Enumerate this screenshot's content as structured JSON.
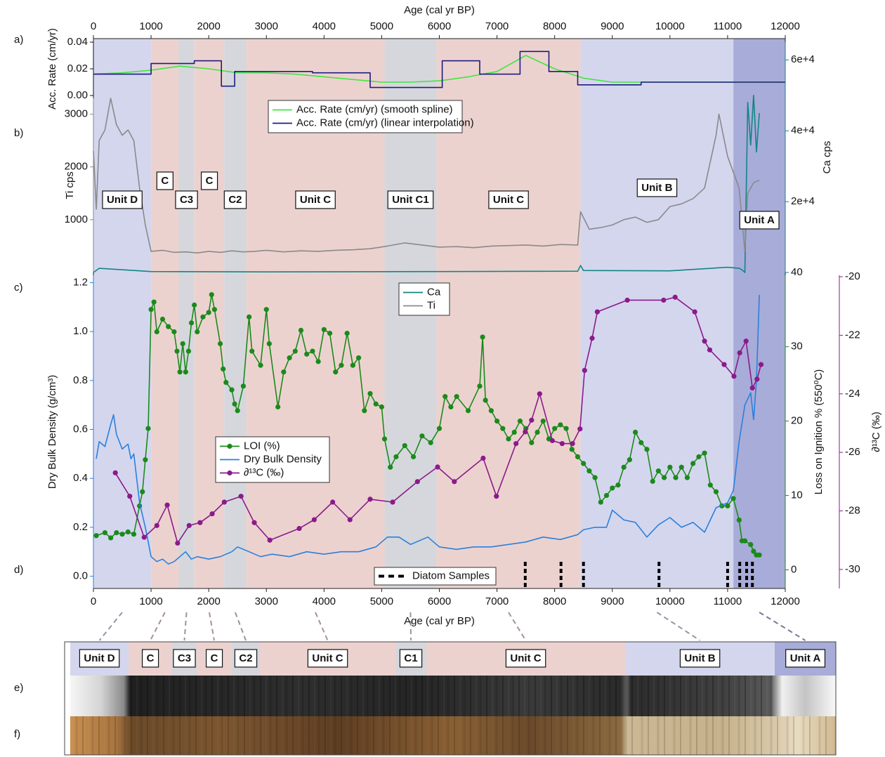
{
  "chart_data": [
    {
      "type": "line",
      "xlabel": "Age (cal yr BP)",
      "xlim": [
        0,
        12000
      ],
      "xticks": [
        0,
        1000,
        2000,
        3000,
        4000,
        5000,
        6000,
        7000,
        8000,
        9000,
        10000,
        11000,
        12000
      ],
      "ylabel": "Acc. Rate (cm/yr)",
      "ylim": [
        0,
        0.04
      ],
      "yticks": [
        {
          "value": 0,
          "label": "0.00"
        },
        {
          "value": 0.02,
          "label": "0.02"
        },
        {
          "value": 0.04,
          "label": "0.04"
        }
      ],
      "series": [
        {
          "name": "Acc. Rate (cm/yr) (smooth spline)",
          "color": "#3fe63f",
          "x": [
            0,
            500,
            1000,
            1500,
            2000,
            2500,
            3000,
            3500,
            4000,
            4500,
            5000,
            5500,
            6000,
            6500,
            7000,
            7500,
            8000,
            8500,
            9000,
            9500,
            10000,
            10500,
            11000,
            11500,
            12000
          ],
          "values": [
            0.016,
            0.017,
            0.019,
            0.022,
            0.02,
            0.017,
            0.017,
            0.016,
            0.014,
            0.012,
            0.01,
            0.01,
            0.011,
            0.014,
            0.018,
            0.03,
            0.02,
            0.013,
            0.01,
            0.01,
            0.01,
            0.01,
            0.01,
            0.01,
            0.01
          ]
        },
        {
          "name": "Acc. Rate (cm/yr) (linear interpolation)",
          "color": "#1c1c80",
          "x": [
            0,
            1000,
            1000,
            1750,
            1750,
            2220,
            2220,
            2450,
            2450,
            3800,
            3800,
            4800,
            4800,
            6050,
            6050,
            6700,
            6700,
            7400,
            7400,
            7900,
            7900,
            8400,
            8400,
            9500,
            9500,
            12000
          ],
          "values": [
            0.016,
            0.016,
            0.024,
            0.024,
            0.026,
            0.026,
            0.007,
            0.007,
            0.018,
            0.018,
            0.017,
            0.017,
            0.006,
            0.006,
            0.026,
            0.026,
            0.016,
            0.016,
            0.033,
            0.033,
            0.018,
            0.018,
            0.008,
            0.008,
            0.01,
            0.01
          ]
        }
      ]
    },
    {
      "type": "line",
      "xlim": [
        0,
        12000
      ],
      "ylabel": "Ti cps",
      "ylim": [
        0,
        3300
      ],
      "yticks": [
        1000,
        2000,
        3000
      ],
      "y2label": "Ca cps",
      "y2lim": [
        40,
        65000
      ],
      "y2ticks": [
        40,
        {
          "value": 20000,
          "label": "2e+4"
        },
        {
          "value": 40000,
          "label": "4e+4"
        },
        {
          "value": 60000,
          "label": "6e+4"
        }
      ],
      "series": [
        {
          "name": "Ca",
          "color": "#138585",
          "axis": "y2",
          "x": [
            0,
            100,
            1000,
            3000,
            6000,
            8400,
            8450,
            8500,
            10000,
            11000,
            11200,
            11250,
            11300,
            11350,
            11400,
            11450,
            11500,
            11550
          ],
          "values": [
            40,
            1200,
            300,
            200,
            300,
            400,
            2000,
            600,
            500,
            1500,
            1200,
            800,
            40,
            48000,
            36000,
            50000,
            34000,
            45000
          ]
        },
        {
          "name": "Ti",
          "color": "#8a8a8a",
          "axis": "y",
          "x": [
            0,
            50,
            100,
            200,
            300,
            400,
            500,
            600,
            700,
            800,
            900,
            1000,
            1200,
            1400,
            1600,
            1800,
            2000,
            2200,
            2400,
            2600,
            2800,
            3000,
            3300,
            3600,
            3900,
            4200,
            4500,
            4800,
            5100,
            5400,
            5700,
            6000,
            6300,
            6600,
            6900,
            7200,
            7500,
            7800,
            8100,
            8400,
            8450,
            8600,
            8800,
            9000,
            9200,
            9400,
            9600,
            9800,
            10000,
            10200,
            10400,
            10600,
            10800,
            10850,
            11000,
            11200,
            11300,
            11350,
            11450,
            11550
          ],
          "values": [
            2300,
            1200,
            2500,
            2700,
            3300,
            2800,
            2600,
            2700,
            2500,
            1600,
            900,
            400,
            420,
            380,
            390,
            370,
            400,
            380,
            410,
            390,
            400,
            420,
            390,
            410,
            400,
            420,
            430,
            450,
            500,
            560,
            520,
            480,
            490,
            470,
            500,
            510,
            520,
            500,
            530,
            520,
            1150,
            820,
            850,
            900,
            1000,
            1050,
            950,
            1000,
            1250,
            1300,
            1400,
            1600,
            2600,
            3000,
            2200,
            1600,
            400,
            1500,
            1700,
            1750
          ]
        }
      ]
    },
    {
      "type": "line",
      "xlabel": "Age (cal yr BP)",
      "xlim": [
        0,
        12000
      ],
      "xticks": [
        0,
        1000,
        2000,
        3000,
        4000,
        5000,
        6000,
        7000,
        8000,
        9000,
        10000,
        11000,
        12000
      ],
      "ylabel": "Dry Bulk Density (g/cm³)",
      "ylim": [
        -0.05,
        1.23
      ],
      "yticks": [
        {
          "value": 0,
          "label": "0.0"
        },
        0.2,
        0.4,
        0.6,
        0.8,
        {
          "value": 1,
          "label": "1.0"
        },
        1.2
      ],
      "y2label": "Loss on Ignition % (550⁰C)",
      "y2lim": [
        -2.5,
        39.6
      ],
      "y2ticks": [
        0,
        10,
        20,
        30
      ],
      "y3label": "∂¹³C (‰)",
      "y3lim": [
        -30.65,
        -19.95
      ],
      "y3ticks": [
        -30,
        -28,
        -26,
        -24,
        -22,
        -20
      ],
      "series": [
        {
          "name": "LOI (%)",
          "color": "#1b8a1b",
          "axis": "y2",
          "marker": true,
          "x": [
            50,
            200,
            300,
            400,
            500,
            600,
            700,
            800,
            850,
            900,
            950,
            1000,
            1050,
            1100,
            1200,
            1300,
            1400,
            1450,
            1500,
            1550,
            1600,
            1650,
            1700,
            1750,
            1800,
            1900,
            2000,
            2050,
            2100,
            2200,
            2250,
            2300,
            2400,
            2450,
            2500,
            2600,
            2700,
            2750,
            2900,
            3000,
            3050,
            3200,
            3300,
            3400,
            3500,
            3600,
            3700,
            3800,
            3900,
            4000,
            4100,
            4200,
            4300,
            4400,
            4500,
            4600,
            4700,
            4800,
            4900,
            5000,
            5050,
            5150,
            5250,
            5400,
            5550,
            5700,
            5850,
            6000,
            6100,
            6200,
            6300,
            6500,
            6700,
            6750,
            6800,
            6900,
            7000,
            7100,
            7200,
            7300,
            7400,
            7500,
            7600,
            7700,
            7800,
            7900,
            8000,
            8100,
            8200,
            8300,
            8400,
            8500,
            8600,
            8700,
            8800,
            8900,
            9000,
            9100,
            9200,
            9300,
            9400,
            9500,
            9600,
            9700,
            9800,
            9900,
            10000,
            10100,
            10200,
            10300,
            10400,
            10500,
            10600,
            10700,
            10800,
            10900,
            11000,
            11100,
            11200,
            11250,
            11300,
            11400,
            11450,
            11500,
            11550
          ],
          "values": [
            4.6,
            5.0,
            4.3,
            5.0,
            4.8,
            5.1,
            4.8,
            8.6,
            10.5,
            14.8,
            19.0,
            35.0,
            36.0,
            32.0,
            33.7,
            32.7,
            32.0,
            29.4,
            26.6,
            30.4,
            26.6,
            29.4,
            33.2,
            35.6,
            32.0,
            34.0,
            34.6,
            37.0,
            35.0,
            30.4,
            27.0,
            25.2,
            24.2,
            22.3,
            21.4,
            24.7,
            34.0,
            29.4,
            27.5,
            35.0,
            30.4,
            21.9,
            26.6,
            28.5,
            29.4,
            32.2,
            29.0,
            29.4,
            28.0,
            32.3,
            31.8,
            26.6,
            27.5,
            31.8,
            27.5,
            28.5,
            21.4,
            23.7,
            22.3,
            21.9,
            17.6,
            13.8,
            15.2,
            16.7,
            15.2,
            18.0,
            17.1,
            19.0,
            23.3,
            21.9,
            23.3,
            21.4,
            24.7,
            31.3,
            22.8,
            21.4,
            20.0,
            19.0,
            17.6,
            18.5,
            20.0,
            19.0,
            17.1,
            18.5,
            20.0,
            17.6,
            19.0,
            19.5,
            19.0,
            16.2,
            15.2,
            14.3,
            13.3,
            12.4,
            9.1,
            10.0,
            11.0,
            11.4,
            13.8,
            14.8,
            18.5,
            17.1,
            16.2,
            11.9,
            13.3,
            12.4,
            13.8,
            12.4,
            13.8,
            12.4,
            14.3,
            15.2,
            15.7,
            11.4,
            10.5,
            8.6,
            8.6,
            9.6,
            6.7,
            3.9,
            3.9,
            3.4,
            2.5,
            2.0,
            2.0
          ]
        },
        {
          "name": "Dry Bulk Density",
          "color": "#2a80dc",
          "axis": "y",
          "x": [
            50,
            100,
            200,
            300,
            350,
            400,
            500,
            600,
            650,
            700,
            750,
            800,
            900,
            1000,
            1100,
            1200,
            1300,
            1400,
            1500,
            1600,
            1700,
            1800,
            2000,
            2200,
            2400,
            2500,
            2700,
            2900,
            3100,
            3400,
            3700,
            4000,
            4300,
            4600,
            4900,
            5100,
            5300,
            5500,
            5800,
            6000,
            6300,
            6600,
            6900,
            7200,
            7500,
            7800,
            8100,
            8400,
            8500,
            8700,
            8900,
            9000,
            9200,
            9400,
            9600,
            9800,
            10000,
            10200,
            10400,
            10600,
            10800,
            11000,
            11100,
            11200,
            11300,
            11400,
            11450,
            11500,
            11550
          ],
          "values": [
            0.48,
            0.55,
            0.53,
            0.62,
            0.66,
            0.58,
            0.52,
            0.54,
            0.48,
            0.5,
            0.4,
            0.3,
            0.2,
            0.08,
            0.06,
            0.07,
            0.05,
            0.06,
            0.08,
            0.1,
            0.07,
            0.08,
            0.07,
            0.08,
            0.1,
            0.12,
            0.1,
            0.08,
            0.09,
            0.08,
            0.1,
            0.09,
            0.1,
            0.1,
            0.12,
            0.16,
            0.16,
            0.13,
            0.16,
            0.12,
            0.11,
            0.12,
            0.12,
            0.13,
            0.14,
            0.16,
            0.15,
            0.17,
            0.19,
            0.2,
            0.2,
            0.27,
            0.23,
            0.22,
            0.16,
            0.21,
            0.24,
            0.2,
            0.22,
            0.18,
            0.28,
            0.3,
            0.35,
            0.55,
            0.7,
            0.75,
            0.64,
            0.8,
            1.15
          ]
        },
        {
          "name": "∂¹³C (‰)",
          "color": "#8b1a8b",
          "axis": "y3",
          "marker": true,
          "x": [
            380,
            630,
            880,
            1100,
            1280,
            1460,
            1660,
            1850,
            2060,
            2270,
            2560,
            2790,
            3060,
            3570,
            3830,
            4150,
            4450,
            4800,
            5190,
            5620,
            5970,
            6260,
            6760,
            6990,
            7330,
            7490,
            7600,
            7740,
            7960,
            8130,
            8310,
            8440,
            8520,
            8650,
            8740,
            9260,
            9890,
            10090,
            10430,
            10600,
            10690,
            10940,
            11110,
            11210,
            11320,
            11430,
            11510,
            11580
          ],
          "values": [
            -26.7,
            -27.5,
            -28.9,
            -28.5,
            -27.8,
            -29.1,
            -28.5,
            -28.4,
            -28.1,
            -27.7,
            -27.5,
            -28.4,
            -29.0,
            -28.6,
            -28.3,
            -27.7,
            -28.3,
            -27.6,
            -27.7,
            -27.0,
            -26.5,
            -27.0,
            -26.2,
            -27.5,
            -25.7,
            -25.3,
            -24.9,
            -24.0,
            -25.6,
            -25.7,
            -25.7,
            -25.2,
            -23.2,
            -22.1,
            -21.2,
            -20.8,
            -20.8,
            -20.7,
            -21.2,
            -22.2,
            -22.5,
            -23.0,
            -23.4,
            -22.6,
            -22.2,
            -23.8,
            -23.5,
            -23.0
          ]
        }
      ],
      "markers": {
        "name": "Diatom Samples",
        "color": "#000000",
        "x": [
          7490,
          8110,
          8500,
          9810,
          11000,
          11210,
          11330,
          11430
        ]
      }
    }
  ],
  "units": [
    {
      "label": "Unit D",
      "start": 0,
      "end": 1000,
      "color": "#d4d6ee"
    },
    {
      "label": "C",
      "start": 1000,
      "end": 1480,
      "color": "#ecd2cf"
    },
    {
      "label": "C3",
      "start": 1480,
      "end": 1750,
      "color": "#d5d7dc"
    },
    {
      "label": "C",
      "start": 1750,
      "end": 2270,
      "color": "#ecd2cf"
    },
    {
      "label": "C2",
      "start": 2270,
      "end": 2650,
      "color": "#d5d7dc"
    },
    {
      "label": "Unit C",
      "start": 2650,
      "end": 5050,
      "color": "#ecd2cf"
    },
    {
      "label": "Unit C1",
      "start": 5050,
      "end": 5950,
      "color": "#d5d7dc"
    },
    {
      "label": "Unit C",
      "start": 5950,
      "end": 8450,
      "color": "#ecd2cf"
    },
    {
      "label": "Unit B",
      "start": 8450,
      "end": 11100,
      "color": "#d4d6ee"
    },
    {
      "label": "Unit A",
      "start": 11100,
      "end": 12000,
      "color": "#a8acd8"
    }
  ],
  "core": {
    "labels": [
      "Unit D",
      "C",
      "C3",
      "C",
      "C2",
      "Unit C",
      "C1",
      "Unit C",
      "Unit B",
      "Unit A"
    ]
  },
  "panel_labels": [
    "a)",
    "b)",
    "c)",
    "d)",
    "e)",
    "f)"
  ]
}
